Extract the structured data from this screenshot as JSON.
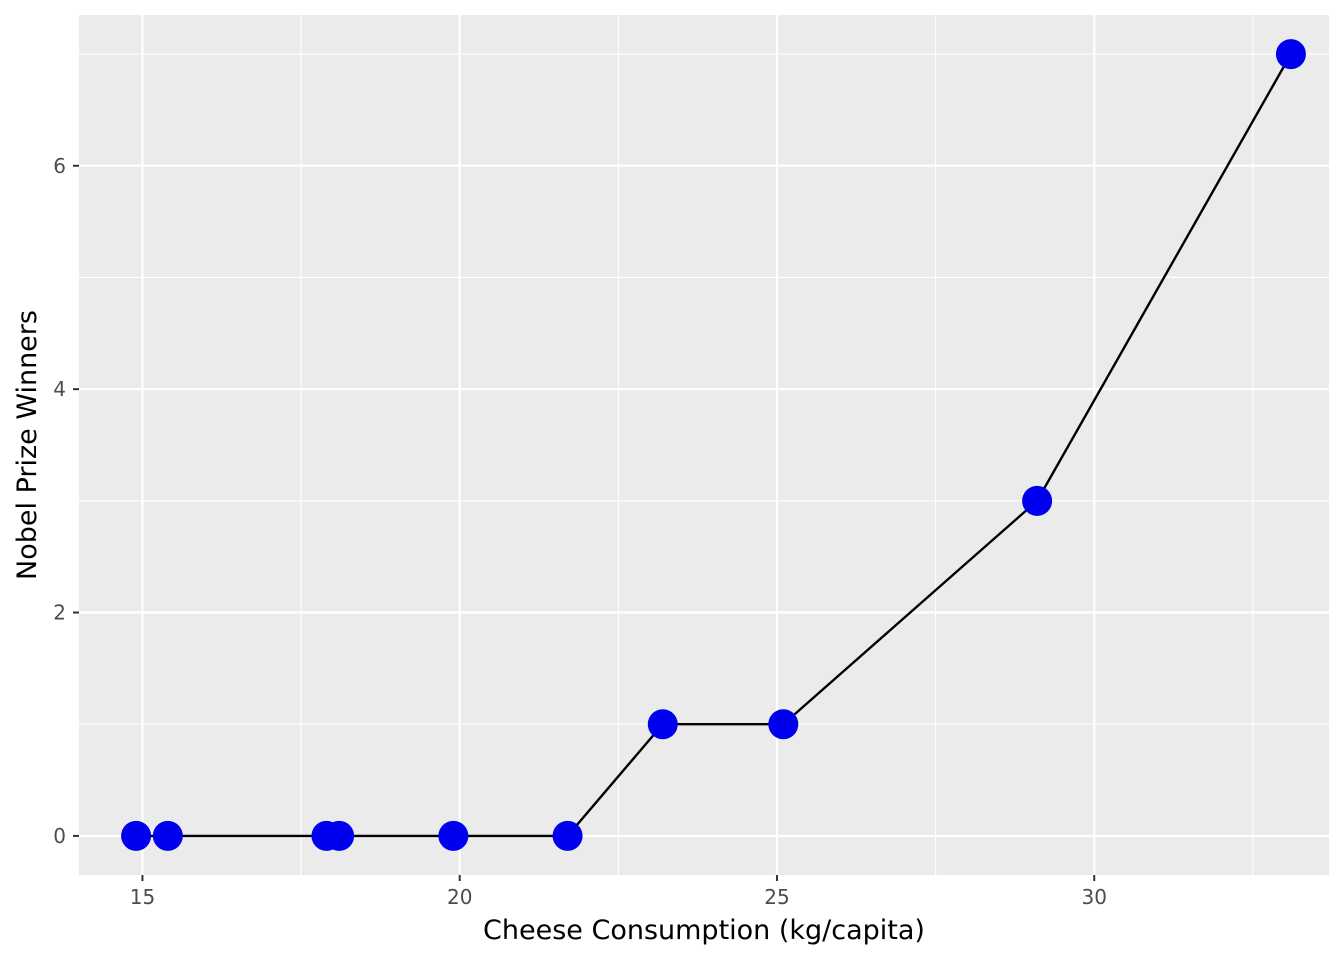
{
  "chart_data": {
    "type": "line",
    "xlabel": "Cheese Consumption (kg/capita)",
    "ylabel": "Nobel Prize Winners",
    "xlim": [
      14,
      33.7
    ],
    "ylim": [
      -0.35,
      7.35
    ],
    "x_ticks": [
      15,
      20,
      25,
      30
    ],
    "y_ticks": [
      0,
      2,
      4,
      6
    ],
    "x_tick_labels": [
      "15",
      "20",
      "25",
      "30"
    ],
    "y_tick_labels": [
      "0",
      "2",
      "4",
      "6"
    ],
    "grid": true,
    "series": [
      {
        "x": [
          14.9,
          15.4,
          17.9,
          18.1,
          19.9,
          21.7,
          23.2,
          25.1,
          29.1,
          33.1
        ],
        "y": [
          0,
          0,
          0,
          0,
          0,
          0,
          1,
          1,
          3,
          7
        ]
      }
    ],
    "colors": {
      "panel": "#ebebeb",
      "grid": "#ffffff",
      "point": "#0000ee",
      "line": "#000000"
    }
  }
}
